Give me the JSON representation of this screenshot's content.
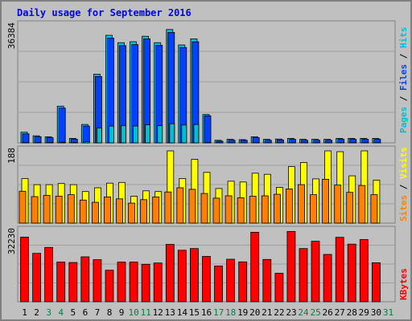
{
  "title": "Daily usage for September 2016",
  "colors": {
    "hits": "#00c0e0",
    "files": "#0040ff",
    "pages": "#00c0d0",
    "visits": "#ffff00",
    "sites": "#ff8000",
    "kbytes": "#ff0000",
    "weekend_day": "#008040",
    "weekday": "#000000",
    "background": "#c0c0c0"
  },
  "chart_data": {
    "type": "bar",
    "title": "Daily usage for September 2016",
    "x": [
      "1",
      "2",
      "3",
      "4",
      "5",
      "6",
      "7",
      "8",
      "9",
      "10",
      "11",
      "12",
      "13",
      "14",
      "15",
      "16",
      "17",
      "18",
      "19",
      "20",
      "21",
      "22",
      "23",
      "24",
      "25",
      "26",
      "27",
      "28",
      "29",
      "30",
      "31"
    ],
    "weekend_days": [
      "3",
      "4",
      "10",
      "11",
      "17",
      "18",
      "24",
      "25",
      "31"
    ],
    "panels": [
      {
        "name": "hits-files-pages",
        "max_label": "36384",
        "ymax": 36384,
        "series": [
          {
            "name": "Hits",
            "values": [
              3300,
              2200,
              1900,
              11400,
              1400,
              5700,
              21300,
              33400,
              31100,
              31400,
              33100,
              31100,
              35200,
              30400,
              32300,
              8800,
              800,
              1100,
              1000,
              1900,
              1100,
              1200,
              1400,
              1100,
              1100,
              1100,
              1400,
              1400,
              1400,
              1400,
              0
            ]
          },
          {
            "name": "Files",
            "values": [
              2800,
              1900,
              1600,
              10800,
              1100,
              5200,
              20600,
              32500,
              30200,
              30500,
              32300,
              30300,
              34300,
              29600,
              31400,
              8400,
              500,
              800,
              800,
              1600,
              800,
              900,
              1100,
              800,
              800,
              800,
              1100,
              1100,
              1100,
              1100,
              0
            ]
          },
          {
            "name": "Pages",
            "values": [
              100,
              100,
              100,
              200,
              100,
              400,
              4600,
              5200,
              5300,
              5200,
              5600,
              5300,
              5900,
              5500,
              5700,
              100,
              20,
              30,
              30,
              60,
              30,
              30,
              40,
              30,
              30,
              30,
              40,
              40,
              40,
              40,
              0
            ]
          }
        ]
      },
      {
        "name": "visits-sites",
        "max_label": "188",
        "ymax": 188,
        "series": [
          {
            "name": "Visits",
            "values": [
              116,
              100,
              100,
              103,
              100,
              82,
              92,
              104,
              106,
              70,
              84,
              82,
              188,
              116,
              166,
              132,
              90,
              109,
              107,
              130,
              127,
              93,
              147,
              158,
              115,
              188,
              186,
              123,
              188,
              112,
              0
            ]
          },
          {
            "name": "Sites",
            "values": [
              83,
              69,
              72,
              70,
              74,
              60,
              54,
              68,
              63,
              52,
              61,
              68,
              81,
              92,
              88,
              77,
              65,
              71,
              66,
              70,
              71,
              75,
              89,
              100,
              74,
              114,
              99,
              80,
              98,
              74,
              0
            ]
          }
        ]
      },
      {
        "name": "kbytes",
        "max_label": "32230",
        "ymax": 32230,
        "series": [
          {
            "name": "KBytes",
            "values": [
              29500,
              22100,
              24800,
              18100,
              17900,
              20500,
              19200,
              14400,
              18100,
              18100,
              17100,
              17700,
              26200,
              23500,
              24300,
              20700,
              16300,
              19400,
              18200,
              31700,
              19300,
              13000,
              32100,
              24300,
              27600,
              21600,
              29400,
              26300,
              28400,
              17800,
              0
            ]
          }
        ]
      }
    ],
    "legend": [
      "Pages",
      "Files",
      "Hits",
      "Sites",
      "Visits",
      "KBytes"
    ],
    "grid": true
  }
}
